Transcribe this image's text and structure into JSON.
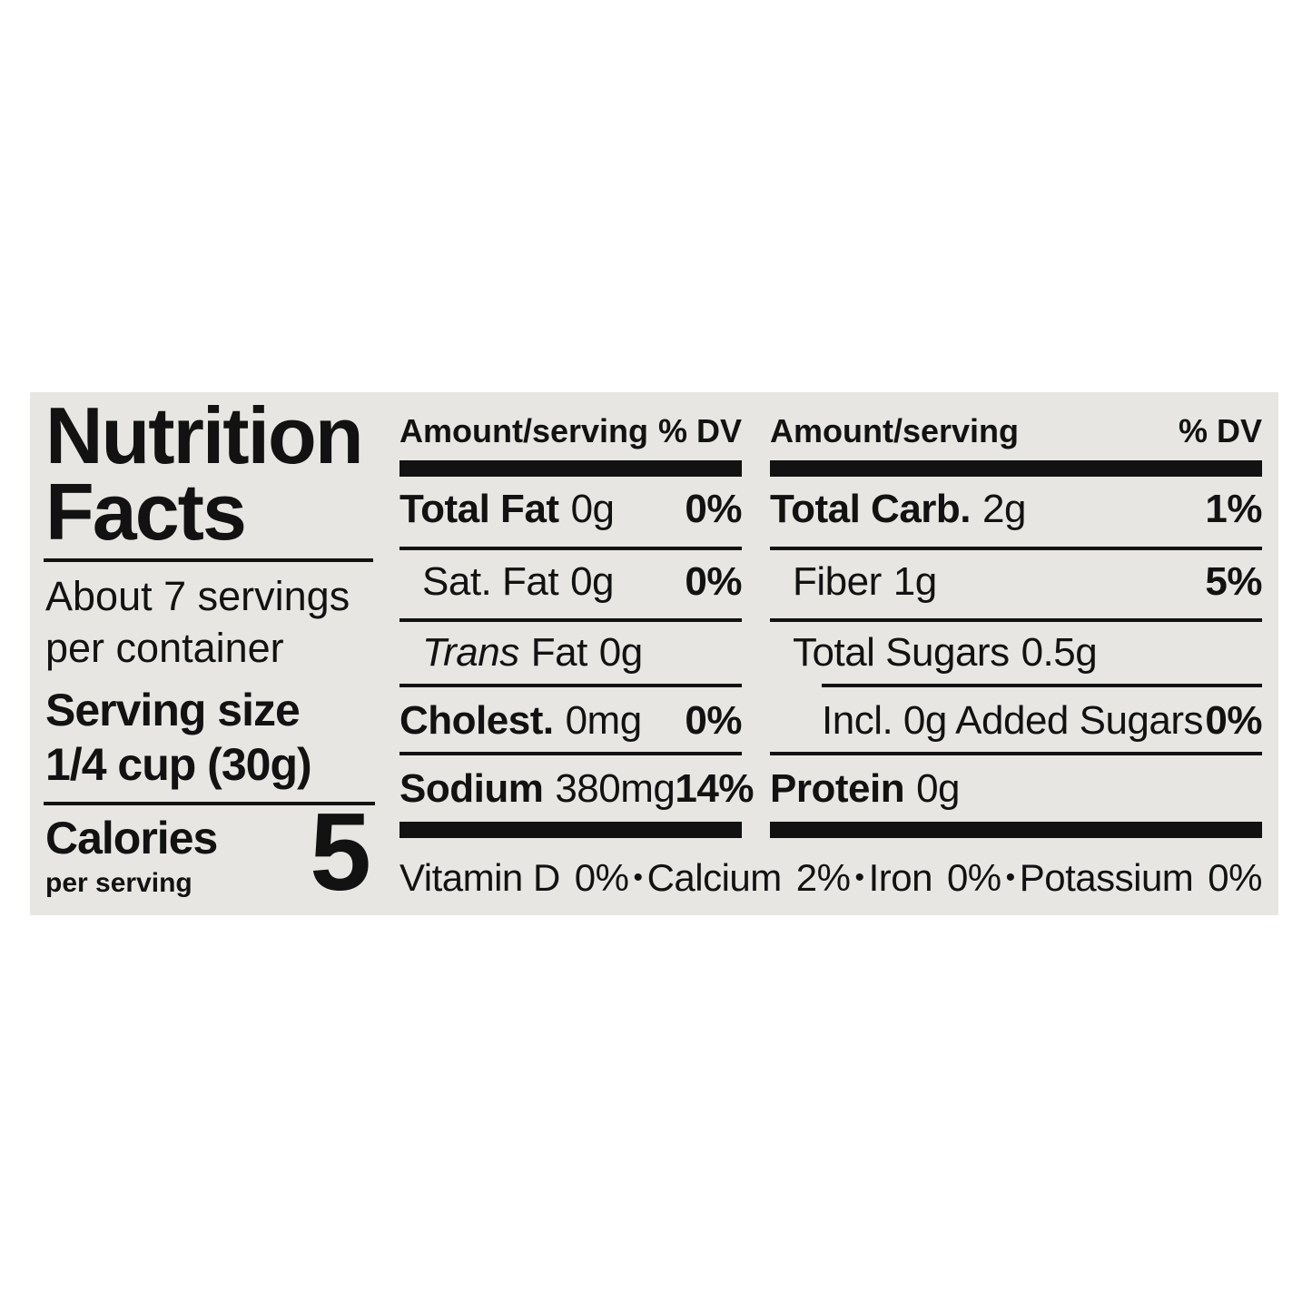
{
  "label": {
    "title": {
      "line1": "Nutrition",
      "line2": "Facts"
    },
    "servings": {
      "line1": "About 7 servings",
      "line2": "per container"
    },
    "serving_size": {
      "label": "Serving size",
      "value": "1/4 cup (30g)"
    },
    "calories": {
      "label": "Calories",
      "sublabel": "per serving",
      "value": "5"
    },
    "columns": [
      {
        "header": {
          "amount": "Amount/serving",
          "dv": "% DV"
        },
        "rows": [
          {
            "label": "Total Fat",
            "value": "0g",
            "dv": "0%"
          },
          {
            "label": "Sat. Fat",
            "value": "0g",
            "dv": "0%"
          },
          {
            "label_italic": "Trans",
            "label": "Fat",
            "value": "0g"
          },
          {
            "label": "Cholest.",
            "value": "0mg",
            "dv": "0%"
          },
          {
            "label": "Sodium",
            "value": "380mg",
            "dv": "14%"
          }
        ]
      },
      {
        "header": {
          "amount": "Amount/serving",
          "dv": "% DV"
        },
        "rows": [
          {
            "label": "Total Carb.",
            "value": "2g",
            "dv": "1%"
          },
          {
            "label": "Fiber",
            "value": "1g",
            "dv": "5%"
          },
          {
            "label": "Total Sugars",
            "value": "0.5g"
          },
          {
            "label": "Incl. 0g Added Sugars",
            "dv": "0%"
          },
          {
            "label": "Protein",
            "value": "0g"
          }
        ]
      }
    ],
    "micronutrients": {
      "separator": "•",
      "items": [
        {
          "name": "Vitamin D",
          "value": "0%"
        },
        {
          "name": "Calcium",
          "value": "2%"
        },
        {
          "name": "Iron",
          "value": "0%"
        },
        {
          "name": "Potassium",
          "value": "0%"
        }
      ]
    },
    "colors": {
      "page_bg": "#ffffff",
      "label_bg": "#e7e6e3",
      "text": "#121212"
    }
  }
}
